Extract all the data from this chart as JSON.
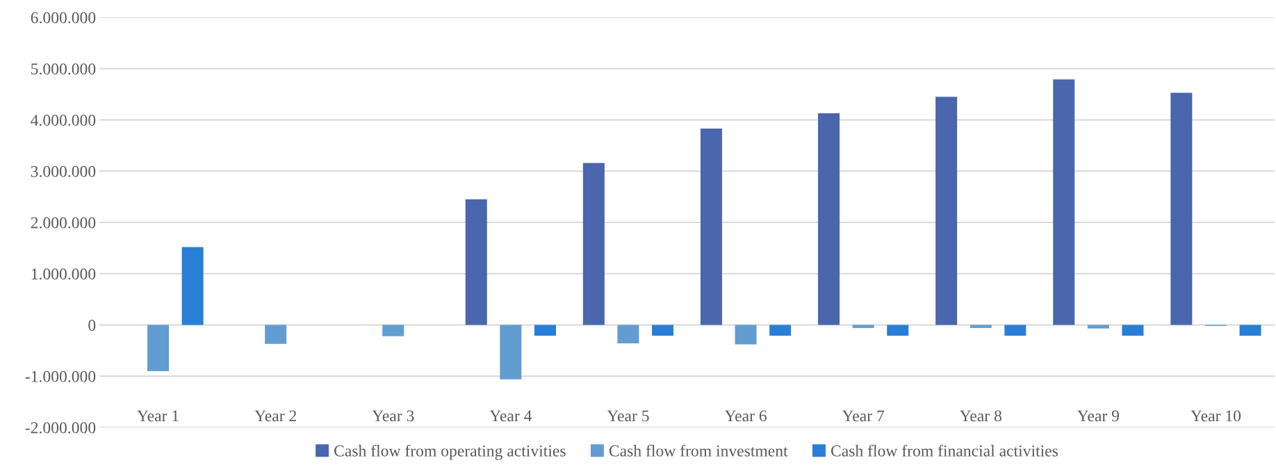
{
  "chart_data": {
    "type": "bar",
    "categories": [
      "Year 1",
      "Year 2",
      "Year 3",
      "Year 4",
      "Year 5",
      "Year 6",
      "Year 7",
      "Year 8",
      "Year 9",
      "Year 10"
    ],
    "series": [
      {
        "name": "Cash flow from operating activities",
        "color": "#4a66ac",
        "values": [
          0,
          0,
          0,
          2450000,
          3160000,
          3830000,
          4130000,
          4450000,
          4790000,
          4530000
        ]
      },
      {
        "name": "Cash flow from investment",
        "color": "#629dd1",
        "values": [
          -900000,
          -370000,
          -220000,
          -1060000,
          -360000,
          -380000,
          -60000,
          -60000,
          -70000,
          -20000
        ]
      },
      {
        "name": "Cash flow from financial activities",
        "color": "#297fd5",
        "values": [
          1520000,
          0,
          0,
          -210000,
          -210000,
          -210000,
          -210000,
          -210000,
          -210000,
          -210000
        ]
      }
    ],
    "ylim": [
      -2000000,
      6000000
    ],
    "yticks": [
      {
        "value": -2000000,
        "label": "-2.000.000"
      },
      {
        "value": -1000000,
        "label": "-1.000.000"
      },
      0,
      {
        "value": 1000000,
        "label": "1.000.000"
      },
      {
        "value": 2000000,
        "label": "2.000.000"
      },
      {
        "value": 3000000,
        "label": "3.000.000"
      },
      {
        "value": 4000000,
        "label": "4.000.000"
      },
      {
        "value": 5000000,
        "label": "5.000.000"
      },
      {
        "value": 6000000,
        "label": "6.000.000"
      }
    ],
    "grid": "y",
    "legend": "bottom"
  }
}
